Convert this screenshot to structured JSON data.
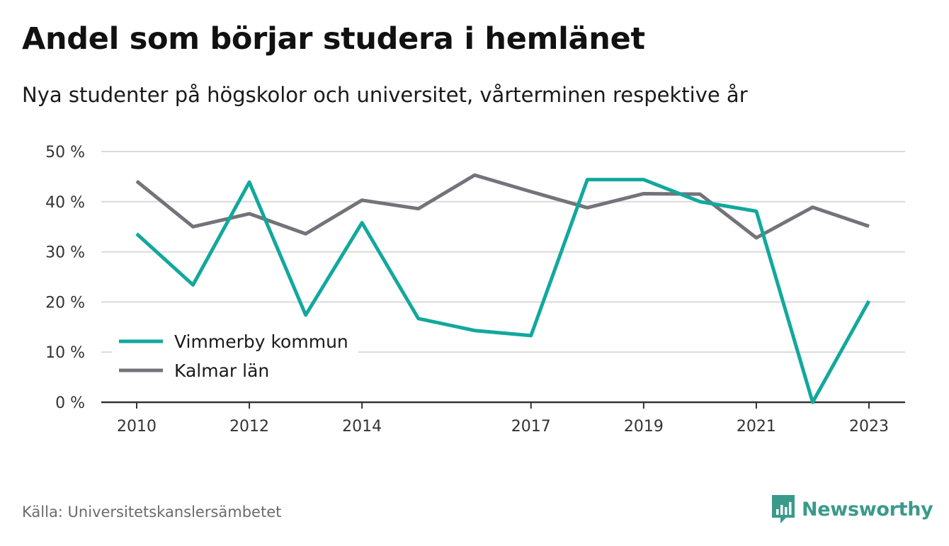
{
  "title": "Andel som börjar studera i hemlänet",
  "subtitle": "Nya studenter på högskolor och universitet, vårterminen respektive år",
  "source": "Källa: Universitetskanslersämbetet",
  "brand": {
    "name": "Newsworthy",
    "icon": "newsworthy-logo-icon",
    "color": "#3a9a8c"
  },
  "chart_data": {
    "type": "line",
    "x": [
      2010,
      2011,
      2012,
      2013,
      2014,
      2015,
      2016,
      2017,
      2018,
      2019,
      2020,
      2021,
      2022,
      2023
    ],
    "x_tick_labels": [
      "2010",
      "2012",
      "2014",
      "2017",
      "2019",
      "2021",
      "2023"
    ],
    "x_tick_values": [
      2010,
      2012,
      2014,
      2017,
      2019,
      2021,
      2023
    ],
    "y_tick_labels": [
      "0 %",
      "10 %",
      "20 %",
      "30 %",
      "40 %",
      "50 %"
    ],
    "y_tick_values": [
      0,
      10,
      20,
      30,
      40,
      50
    ],
    "ylim": [
      0,
      50
    ],
    "xlim": [
      2010,
      2023
    ],
    "grid": true,
    "legend_position": "bottom-left",
    "series": [
      {
        "name": "Vimmerby kommun",
        "color": "#12a89d",
        "values": [
          33.6,
          23.4,
          43.9,
          17.4,
          35.8,
          16.7,
          14.3,
          13.3,
          44.4,
          44.4,
          40.0,
          38.1,
          0.0,
          20.2
        ]
      },
      {
        "name": "Kalmar län",
        "color": "#75737a",
        "values": [
          44.1,
          35.0,
          37.6,
          33.6,
          40.3,
          38.6,
          45.3,
          42.0,
          38.8,
          41.6,
          41.5,
          32.8,
          38.9,
          35.1
        ]
      }
    ]
  }
}
